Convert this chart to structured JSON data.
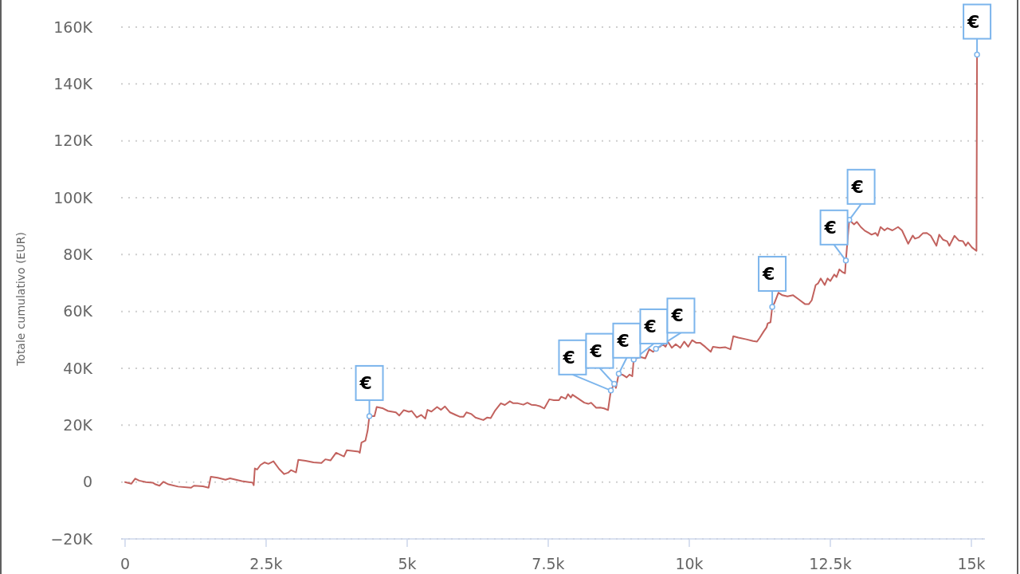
{
  "chart_data": {
    "type": "line",
    "ylabel": "Totale cumulativo (EUR)",
    "xlim": [
      -70,
      15240
    ],
    "ylim": [
      -20000,
      160000
    ],
    "xticks": [
      0,
      {
        "value": 2500,
        "label": "2.5k"
      },
      {
        "value": 5000,
        "label": "5k"
      },
      {
        "value": 7500,
        "label": "7.5k"
      },
      {
        "value": 10000,
        "label": "10k"
      },
      {
        "value": 12500,
        "label": "12.5k"
      },
      {
        "value": 15000,
        "label": "15k"
      }
    ],
    "yticks": [
      {
        "value": -20000,
        "label": "−20K"
      },
      0,
      {
        "value": 20000,
        "label": "20K"
      },
      {
        "value": 40000,
        "label": "40K"
      },
      {
        "value": 60000,
        "label": "60K"
      },
      {
        "value": 80000,
        "label": "80K"
      },
      {
        "value": 100000,
        "label": "100K"
      },
      {
        "value": 120000,
        "label": "120K"
      },
      {
        "value": 140000,
        "label": "140K"
      },
      {
        "value": 160000,
        "label": "160K"
      }
    ],
    "grid": "y",
    "x": [
      0,
      110,
      180,
      250,
      370,
      490,
      540,
      610,
      680,
      770,
      940,
      1170,
      1220,
      1380,
      1480,
      1520,
      1640,
      1780,
      1860,
      2070,
      2190,
      2260,
      2280,
      2300,
      2340,
      2400,
      2470,
      2540,
      2630,
      2730,
      2820,
      2890,
      2940,
      3030,
      3070,
      3200,
      3340,
      3480,
      3550,
      3640,
      3740,
      3880,
      3930,
      4140,
      4160,
      4190,
      4260,
      4300,
      4330,
      4420,
      4460,
      4560,
      4660,
      4800,
      4860,
      4940,
      5030,
      5080,
      5170,
      5250,
      5320,
      5360,
      5430,
      5530,
      5600,
      5670,
      5760,
      5860,
      5930,
      6000,
      6050,
      6140,
      6210,
      6350,
      6420,
      6480,
      6560,
      6660,
      6730,
      6820,
      6880,
      6960,
      7060,
      7130,
      7200,
      7290,
      7360,
      7430,
      7520,
      7600,
      7690,
      7730,
      7810,
      7850,
      7900,
      7930,
      8020,
      8140,
      8210,
      8260,
      8350,
      8420,
      8490,
      8560,
      8610,
      8670,
      8700,
      8750,
      8820,
      8890,
      8940,
      8990,
      9015,
      9130,
      9220,
      9290,
      9360,
      9410,
      9480,
      9530,
      9580,
      9620,
      9690,
      9760,
      9840,
      9910,
      9980,
      10050,
      10120,
      10190,
      10280,
      10380,
      10420,
      10540,
      10640,
      10730,
      10780,
      10870,
      11010,
      11130,
      11200,
      11250,
      11320,
      11370,
      11390,
      11440,
      11470,
      11510,
      11580,
      11650,
      11740,
      11840,
      11930,
      12050,
      12120,
      12170,
      12240,
      12280,
      12330,
      12400,
      12450,
      12500,
      12570,
      12610,
      12660,
      12710,
      12760,
      12775,
      12835,
      12870,
      12920,
      12970,
      13040,
      13110,
      13180,
      13230,
      13300,
      13340,
      13390,
      13460,
      13510,
      13600,
      13700,
      13770,
      13880,
      13960,
      14000,
      14070,
      14140,
      14210,
      14280,
      14380,
      14430,
      14500,
      14570,
      14610,
      14700,
      14780,
      14850,
      14900,
      14940,
      15010,
      15090,
      15100
    ],
    "series": [
      {
        "color": "#c2625e",
        "values": [
          0,
          -600,
          1200,
          500,
          0,
          -200,
          -800,
          -1300,
          100,
          -800,
          -1600,
          -2000,
          -1300,
          -1500,
          -2000,
          1900,
          1500,
          800,
          1300,
          300,
          0,
          -200,
          -1100,
          4800,
          4400,
          6000,
          6900,
          6400,
          7300,
          4600,
          2800,
          3300,
          4200,
          3400,
          7800,
          7500,
          6900,
          6700,
          8000,
          7600,
          10300,
          9000,
          11200,
          10700,
          10300,
          13900,
          14600,
          18200,
          23200,
          23200,
          26400,
          26000,
          25000,
          24500,
          23400,
          25300,
          24700,
          25000,
          22700,
          23600,
          22300,
          25400,
          24800,
          26400,
          25400,
          26600,
          24500,
          23600,
          23000,
          23000,
          24500,
          23900,
          22700,
          21800,
          22700,
          22500,
          25200,
          27700,
          27100,
          28400,
          27700,
          27700,
          27200,
          27900,
          27200,
          27000,
          26600,
          25900,
          29100,
          28800,
          28800,
          30000,
          29300,
          30900,
          29700,
          30700,
          29500,
          27900,
          27500,
          27900,
          26100,
          26200,
          25900,
          25300,
          32200,
          34500,
          33100,
          38100,
          37700,
          36800,
          37800,
          37200,
          43100,
          44000,
          43500,
          46700,
          45800,
          46900,
          47600,
          48500,
          47600,
          49400,
          47200,
          48500,
          47200,
          49400,
          47600,
          49900,
          49000,
          49000,
          47600,
          45800,
          47600,
          47200,
          47400,
          46700,
          51300,
          50800,
          50200,
          49600,
          49400,
          50800,
          53000,
          54400,
          55800,
          56200,
          61600,
          63000,
          66600,
          65700,
          65300,
          65700,
          64400,
          62600,
          62600,
          63900,
          69300,
          69800,
          71600,
          69300,
          71600,
          70700,
          73000,
          72100,
          74800,
          73900,
          73400,
          77900,
          92200,
          91500,
          90600,
          91500,
          89700,
          88400,
          87600,
          87000,
          87600,
          86600,
          89700,
          88500,
          89300,
          88500,
          89700,
          88500,
          83800,
          86700,
          85600,
          86100,
          87500,
          87600,
          86600,
          83100,
          87000,
          85200,
          84700,
          83100,
          86600,
          84900,
          84700,
          83100,
          84300,
          82500,
          81300,
          150300
        ]
      }
    ],
    "annotations": [
      {
        "text": "€",
        "x": 4330,
        "y": 23200
      },
      {
        "text": "€",
        "x": 8610,
        "y": 32200
      },
      {
        "text": "€",
        "x": 8670,
        "y": 34500
      },
      {
        "text": "€",
        "x": 8750,
        "y": 38100
      },
      {
        "text": "€",
        "x": 9015,
        "y": 43100
      },
      {
        "text": "€",
        "x": 9410,
        "y": 46900
      },
      {
        "text": "€",
        "x": 11470,
        "y": 61600
      },
      {
        "text": "€",
        "x": 12775,
        "y": 77900
      },
      {
        "text": "€",
        "x": 12835,
        "y": 92200
      },
      {
        "text": "€",
        "x": 15100,
        "y": 150300
      }
    ]
  }
}
